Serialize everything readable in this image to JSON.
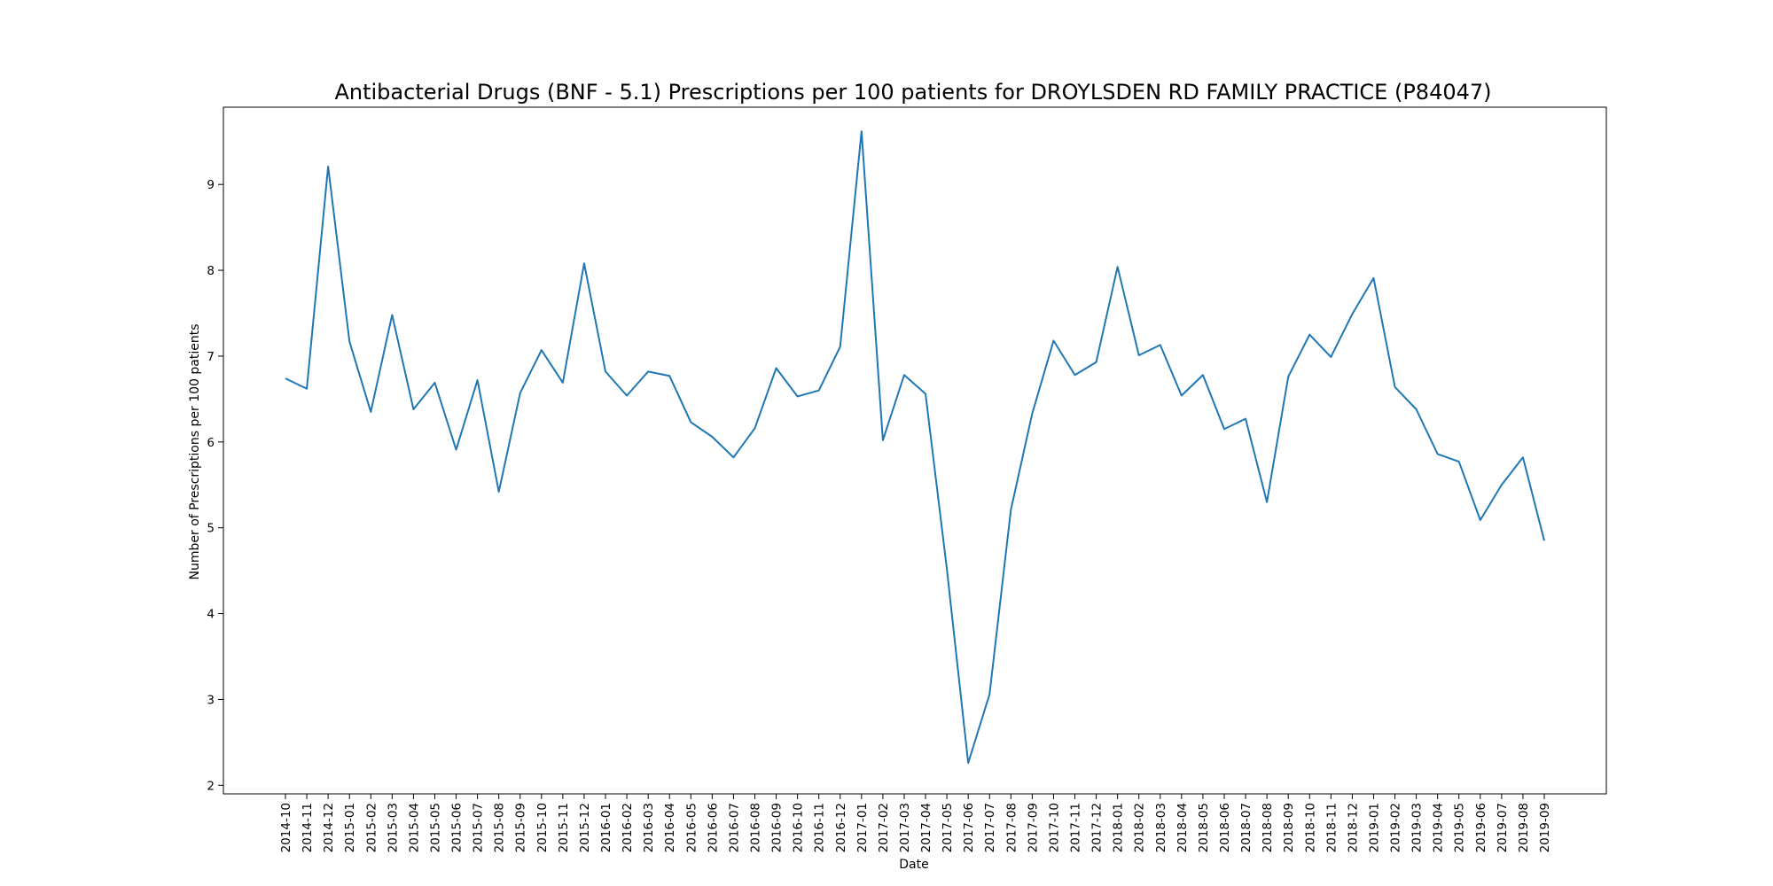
{
  "chart_data": {
    "type": "line",
    "title": "Antibacterial Drugs (BNF - 5.1) Prescriptions per 100 patients for DROYLSDEN RD FAMILY PRACTICE (P84047)",
    "xlabel": "Date",
    "ylabel": "Number of Prescriptions per 100 patients",
    "ylim": [
      1.9,
      9.9
    ],
    "yticks": [
      2,
      3,
      4,
      5,
      6,
      7,
      8,
      9
    ],
    "grid": false,
    "legend": "none",
    "line_color": "#1f77b4",
    "categories": [
      "2014-10",
      "2014-11",
      "2014-12",
      "2015-01",
      "2015-02",
      "2015-03",
      "2015-04",
      "2015-05",
      "2015-06",
      "2015-07",
      "2015-08",
      "2015-09",
      "2015-10",
      "2015-11",
      "2015-12",
      "2016-01",
      "2016-02",
      "2016-03",
      "2016-04",
      "2016-05",
      "2016-06",
      "2016-07",
      "2016-08",
      "2016-09",
      "2016-10",
      "2016-11",
      "2016-12",
      "2017-01",
      "2017-02",
      "2017-03",
      "2017-04",
      "2017-05",
      "2017-06",
      "2017-07",
      "2017-08",
      "2017-09",
      "2017-10",
      "2017-11",
      "2017-12",
      "2018-01",
      "2018-02",
      "2018-03",
      "2018-04",
      "2018-05",
      "2018-06",
      "2018-07",
      "2018-08",
      "2018-09",
      "2018-10",
      "2018-11",
      "2018-12",
      "2019-01",
      "2019-02",
      "2019-03",
      "2019-04",
      "2019-05",
      "2019-06",
      "2019-07",
      "2019-08",
      "2019-09"
    ],
    "series": [
      {
        "values": [
          6.74,
          6.62,
          9.21,
          7.17,
          6.35,
          7.48,
          6.38,
          6.69,
          5.91,
          6.72,
          5.42,
          6.57,
          7.07,
          6.69,
          8.08,
          6.82,
          6.54,
          6.82,
          6.77,
          6.23,
          6.06,
          5.82,
          6.16,
          6.86,
          6.53,
          6.6,
          7.11,
          9.62,
          6.02,
          6.78,
          6.56,
          4.52,
          2.26,
          3.06,
          5.21,
          6.33,
          7.18,
          6.78,
          6.93,
          8.04,
          7.01,
          7.13,
          6.54,
          6.78,
          6.15,
          6.27,
          5.3,
          6.76,
          7.25,
          6.99,
          7.49,
          7.91,
          6.64,
          6.38,
          5.86,
          5.77,
          5.09,
          5.5,
          5.82,
          4.85
        ]
      }
    ]
  }
}
